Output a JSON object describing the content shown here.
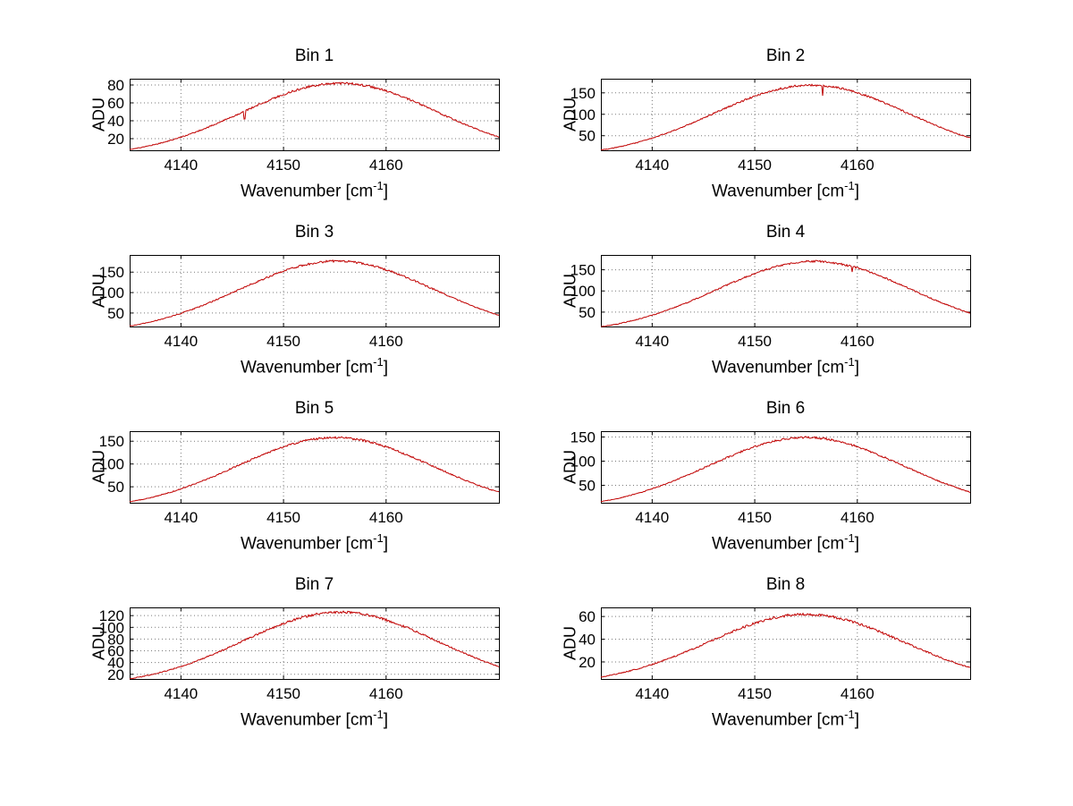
{
  "figure_title": "",
  "labels": {
    "ylabel": "ADU",
    "xlabel_base": "Wavenumber [cm",
    "xlabel_sup": "-1",
    "xlabel_close": "]"
  },
  "styles": {
    "line_color": "#c00000",
    "grid_color": "#7a7a7a",
    "axis_color": "#000000",
    "background": "#ffffff"
  },
  "chart_data": [
    {
      "type": "line",
      "title": "Bin 1",
      "ylabel": "ADU",
      "xlabel": "Wavenumber [cm^-1]",
      "xlim": [
        4135,
        4171
      ],
      "ylim": [
        7,
        87
      ],
      "xticks": [
        4140,
        4150,
        4160
      ],
      "yticks": [
        20,
        40,
        60,
        80
      ],
      "grid": true,
      "legend": false,
      "series": {
        "name": "spectrum",
        "center": 4155.5,
        "sigma": 9.5,
        "peak": 82,
        "noise": 1.3,
        "dips": [
          {
            "x": 4146.2,
            "frac": 0.84
          }
        ]
      },
      "anchor_x": [
        4135,
        4140,
        4145,
        4150,
        4155,
        4160,
        4165,
        4170
      ],
      "anchor_adu": [
        8.0,
        21.6,
        44.5,
        69.3,
        81.9,
        73.3,
        49.7,
        25.6
      ]
    },
    {
      "type": "line",
      "title": "Bin 2",
      "ylabel": "ADU",
      "xlabel": "Wavenumber [cm^-1]",
      "xlim": [
        4135,
        4171
      ],
      "ylim": [
        16,
        183
      ],
      "xticks": [
        4140,
        4150,
        4160
      ],
      "yticks": [
        50,
        100,
        150
      ],
      "grid": true,
      "legend": false,
      "series": {
        "name": "spectrum",
        "center": 4155.5,
        "sigma": 9.5,
        "peak": 168,
        "noise": 2.4,
        "dips": [
          {
            "x": 4156.6,
            "frac": 0.86
          }
        ]
      },
      "anchor_x": [
        4135,
        4140,
        4145,
        4150,
        4155,
        4160,
        4165,
        4170
      ],
      "anchor_adu": [
        16.4,
        44.3,
        91.2,
        142.1,
        167.8,
        150.2,
        101.9,
        52.4
      ]
    },
    {
      "type": "line",
      "title": "Bin 3",
      "ylabel": "ADU",
      "xlabel": "Wavenumber [cm^-1]",
      "xlim": [
        4135,
        4171
      ],
      "ylim": [
        17,
        192
      ],
      "xticks": [
        4140,
        4150,
        4160
      ],
      "yticks": [
        50,
        100,
        150
      ],
      "grid": true,
      "legend": false,
      "series": {
        "name": "spectrum",
        "center": 4155.2,
        "sigma": 9.5,
        "peak": 177,
        "noise": 2.6,
        "dips": []
      },
      "anchor_x": [
        4135,
        4140,
        4145,
        4150,
        4155,
        4160,
        4165,
        4170
      ],
      "anchor_adu": [
        17.3,
        46.7,
        96.1,
        149.7,
        176.8,
        158.2,
        107.4,
        55.2
      ]
    },
    {
      "type": "line",
      "title": "Bin 4",
      "ylabel": "ADU",
      "xlabel": "Wavenumber [cm^-1]",
      "xlim": [
        4135,
        4171
      ],
      "ylim": [
        16,
        185
      ],
      "xticks": [
        4140,
        4150,
        4160
      ],
      "yticks": [
        50,
        100,
        150
      ],
      "grid": true,
      "legend": false,
      "series": {
        "name": "spectrum",
        "center": 4155.8,
        "sigma": 9.5,
        "peak": 170,
        "noise": 2.4,
        "dips": [
          {
            "x": 4159.5,
            "frac": 0.93
          }
        ]
      },
      "anchor_x": [
        4135,
        4140,
        4145,
        4150,
        4155,
        4160,
        4165,
        4170
      ],
      "anchor_adu": [
        16.6,
        44.9,
        92.3,
        143.8,
        169.8,
        152.0,
        103.1,
        53.0
      ]
    },
    {
      "type": "line",
      "title": "Bin 5",
      "ylabel": "ADU",
      "xlabel": "Wavenumber [cm^-1]",
      "xlim": [
        4135,
        4171
      ],
      "ylim": [
        15,
        172
      ],
      "xticks": [
        4140,
        4150,
        4160
      ],
      "yticks": [
        50,
        100,
        150
      ],
      "grid": true,
      "legend": false,
      "series": {
        "name": "spectrum",
        "center": 4155.0,
        "sigma": 9.5,
        "peak": 158,
        "noise": 2.4,
        "dips": []
      },
      "anchor_x": [
        4135,
        4140,
        4145,
        4150,
        4155,
        4160,
        4165,
        4170
      ],
      "anchor_adu": [
        15.4,
        41.7,
        85.8,
        133.6,
        157.8,
        141.2,
        95.8,
        49.3
      ]
    },
    {
      "type": "line",
      "title": "Bin 6",
      "ylabel": "ADU",
      "xlabel": "Wavenumber [cm^-1]",
      "xlim": [
        4135,
        4171
      ],
      "ylim": [
        14,
        162
      ],
      "xticks": [
        4140,
        4150,
        4160
      ],
      "yticks": [
        50,
        100,
        150
      ],
      "grid": true,
      "legend": false,
      "series": {
        "name": "spectrum",
        "center": 4155.0,
        "sigma": 9.5,
        "peak": 149,
        "noise": 2.2,
        "dips": []
      },
      "anchor_x": [
        4135,
        4140,
        4145,
        4150,
        4155,
        4160,
        4165,
        4170
      ],
      "anchor_adu": [
        14.5,
        39.3,
        80.9,
        126.0,
        148.8,
        133.2,
        90.4,
        46.5
      ]
    },
    {
      "type": "line",
      "title": "Bin 7",
      "ylabel": "ADU",
      "xlabel": "Wavenumber [cm^-1]",
      "xlim": [
        4135,
        4171
      ],
      "ylim": [
        12,
        134
      ],
      "xticks": [
        4140,
        4150,
        4160
      ],
      "yticks": [
        20,
        40,
        60,
        80,
        100,
        120
      ],
      "grid": true,
      "legend": false,
      "series": {
        "name": "spectrum",
        "center": 4155.5,
        "sigma": 9.5,
        "peak": 126,
        "noise": 2.0,
        "dips": []
      },
      "anchor_x": [
        4135,
        4140,
        4145,
        4150,
        4155,
        4160,
        4165,
        4170
      ],
      "anchor_adu": [
        12.3,
        33.3,
        68.4,
        106.6,
        125.8,
        112.6,
        76.4,
        39.3
      ]
    },
    {
      "type": "line",
      "title": "Bin 8",
      "ylabel": "ADU",
      "xlabel": "Wavenumber [cm^-1]",
      "xlim": [
        4135,
        4171
      ],
      "ylim": [
        5,
        68
      ],
      "xticks": [
        4140,
        4150,
        4160
      ],
      "yticks": [
        20,
        40,
        60
      ],
      "grid": true,
      "legend": false,
      "series": {
        "name": "spectrum",
        "center": 4155.0,
        "sigma": 9.5,
        "peak": 62,
        "noise": 1.2,
        "dips": []
      },
      "anchor_x": [
        4135,
        4140,
        4145,
        4150,
        4155,
        4160,
        4165,
        4170
      ],
      "anchor_adu": [
        6.0,
        16.4,
        33.7,
        52.4,
        61.9,
        55.4,
        37.6,
        19.3
      ]
    }
  ]
}
